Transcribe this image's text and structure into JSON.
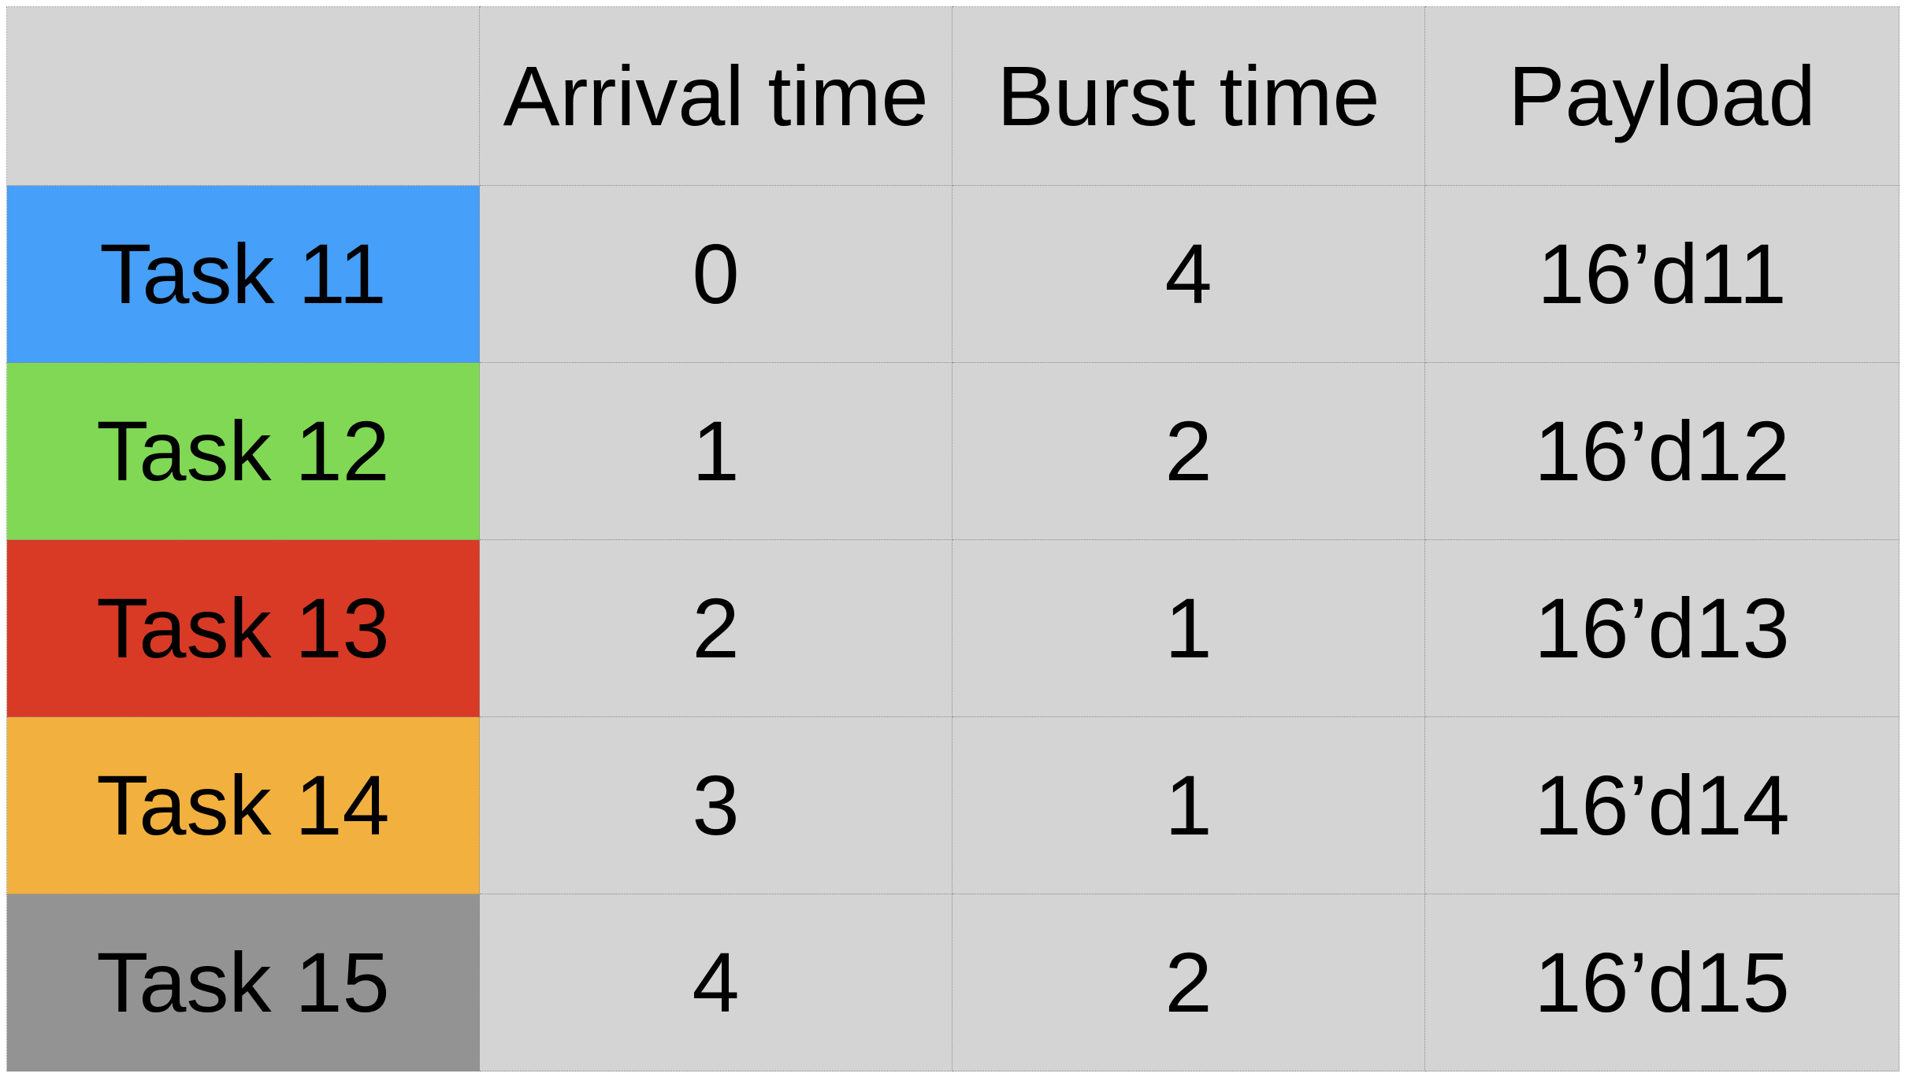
{
  "table": {
    "headers": [
      "",
      "Arrival time",
      "Burst time",
      "Payload"
    ],
    "rows": [
      {
        "task": "Task 11",
        "arrival_time": "0",
        "burst_time": "4",
        "payload": "16’d11",
        "color": "#469ff8"
      },
      {
        "task": "Task 12",
        "arrival_time": "1",
        "burst_time": "2",
        "payload": "16’d12",
        "color": "#80d855"
      },
      {
        "task": "Task 13",
        "arrival_time": "2",
        "burst_time": "1",
        "payload": "16’d13",
        "color": "#d83a26"
      },
      {
        "task": "Task 14",
        "arrival_time": "3",
        "burst_time": "1",
        "payload": "16’d14",
        "color": "#f2b03e"
      },
      {
        "task": "Task 15",
        "arrival_time": "4",
        "burst_time": "2",
        "payload": "16’d15",
        "color": "#939393"
      }
    ]
  }
}
